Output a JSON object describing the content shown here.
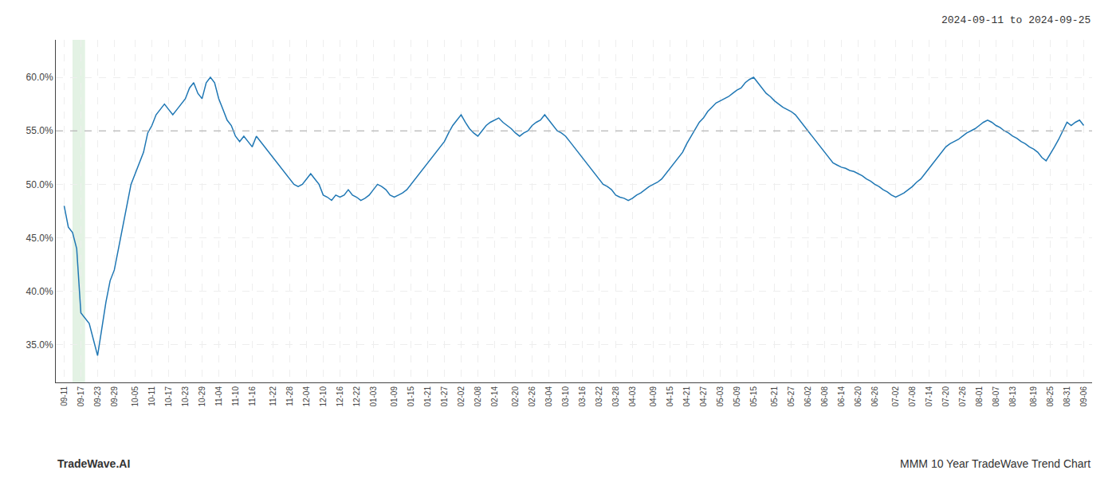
{
  "chart_data": {
    "type": "line",
    "annotations": [
      "2024-09-11 to 2024-09-25",
      "TradeWave.AI",
      "MMM 10 Year TradeWave Trend Chart"
    ],
    "color": "#1f77b4",
    "grid": true,
    "ylim": [
      0.315,
      0.635
    ],
    "yticks": [
      {
        "value": 0.35,
        "label": "35.0%"
      },
      {
        "value": 0.4,
        "label": "40.0%"
      },
      {
        "value": 0.45,
        "label": "45.0%"
      },
      {
        "value": 0.5,
        "label": "50.0%"
      },
      {
        "value": 0.55,
        "label": "55.0%"
      },
      {
        "value": 0.6,
        "label": "60.0%"
      }
    ],
    "highlight": {
      "x": [
        2,
        5
      ],
      "color": "#c8e6c9"
    },
    "reference_line": {
      "y": 0.55
    },
    "categories": [
      "09-11",
      null,
      null,
      null,
      "09-17",
      null,
      null,
      null,
      "09-23",
      null,
      null,
      null,
      "09-29",
      null,
      null,
      null,
      null,
      "10-05",
      null,
      null,
      null,
      "10-11",
      null,
      null,
      null,
      "10-17",
      null,
      null,
      null,
      "10-23",
      null,
      null,
      null,
      "10-29",
      null,
      null,
      null,
      "11-04",
      null,
      null,
      null,
      "11-10",
      null,
      null,
      null,
      "11-16",
      null,
      null,
      null,
      null,
      "11-22",
      null,
      null,
      null,
      "11-28",
      null,
      null,
      null,
      "12-04",
      null,
      null,
      null,
      "12-10",
      null,
      null,
      null,
      "12-16",
      null,
      null,
      null,
      "12-22",
      null,
      null,
      null,
      "01-03",
      null,
      null,
      null,
      null,
      "01-09",
      null,
      null,
      null,
      "01-15",
      null,
      null,
      null,
      "01-21",
      null,
      null,
      null,
      "01-27",
      null,
      null,
      null,
      "02-02",
      null,
      null,
      null,
      "02-08",
      null,
      null,
      null,
      "02-14",
      null,
      null,
      null,
      null,
      "02-20",
      null,
      null,
      null,
      "02-26",
      null,
      null,
      null,
      "03-04",
      null,
      null,
      null,
      "03-10",
      null,
      null,
      null,
      "03-16",
      null,
      null,
      null,
      "03-22",
      null,
      null,
      null,
      "03-28",
      null,
      null,
      null,
      "04-03",
      null,
      null,
      null,
      null,
      "04-09",
      null,
      null,
      null,
      "04-15",
      null,
      null,
      null,
      "04-21",
      null,
      null,
      null,
      "04-27",
      null,
      null,
      null,
      "05-03",
      null,
      null,
      null,
      "05-09",
      null,
      null,
      null,
      "05-15",
      null,
      null,
      null,
      null,
      "05-21",
      null,
      null,
      null,
      "05-27",
      null,
      null,
      null,
      "06-02",
      null,
      null,
      null,
      "06-08",
      null,
      null,
      null,
      "06-14",
      null,
      null,
      null,
      "06-20",
      null,
      null,
      null,
      "06-26",
      null,
      null,
      null,
      null,
      "07-02",
      null,
      null,
      null,
      "07-08",
      null,
      null,
      null,
      "07-14",
      null,
      null,
      null,
      "07-20",
      null,
      null,
      null,
      "07-26",
      null,
      null,
      null,
      "08-01",
      null,
      null,
      null,
      "08-07",
      null,
      null,
      null,
      "08-13",
      null,
      null,
      null,
      null,
      "08-19",
      null,
      null,
      null,
      "08-25",
      null,
      null,
      null,
      "08-31",
      null,
      null,
      null,
      "09-06"
    ],
    "values": [
      0.48,
      0.46,
      0.455,
      0.44,
      0.38,
      0.375,
      0.37,
      0.355,
      0.34,
      0.365,
      0.39,
      0.41,
      0.42,
      0.44,
      0.46,
      0.48,
      0.5,
      0.51,
      0.52,
      0.53,
      0.548,
      0.555,
      0.565,
      0.57,
      0.575,
      0.57,
      0.565,
      0.57,
      0.575,
      0.58,
      0.59,
      0.595,
      0.585,
      0.58,
      0.595,
      0.6,
      0.595,
      0.58,
      0.57,
      0.56,
      0.555,
      0.545,
      0.54,
      0.545,
      0.54,
      0.535,
      0.545,
      0.54,
      0.535,
      0.53,
      0.525,
      0.52,
      0.515,
      0.51,
      0.505,
      0.5,
      0.498,
      0.5,
      0.505,
      0.51,
      0.505,
      0.5,
      0.49,
      0.488,
      0.485,
      0.49,
      0.488,
      0.49,
      0.495,
      0.49,
      0.488,
      0.485,
      0.487,
      0.49,
      0.495,
      0.5,
      0.498,
      0.495,
      0.49,
      0.488,
      0.49,
      0.492,
      0.495,
      0.5,
      0.505,
      0.51,
      0.515,
      0.52,
      0.525,
      0.53,
      0.535,
      0.54,
      0.548,
      0.555,
      0.56,
      0.565,
      0.558,
      0.552,
      0.548,
      0.545,
      0.55,
      0.555,
      0.558,
      0.56,
      0.562,
      0.558,
      0.555,
      0.552,
      0.548,
      0.545,
      0.548,
      0.55,
      0.555,
      0.558,
      0.56,
      0.565,
      0.56,
      0.555,
      0.55,
      0.548,
      0.545,
      0.54,
      0.535,
      0.53,
      0.525,
      0.52,
      0.515,
      0.51,
      0.505,
      0.5,
      0.498,
      0.495,
      0.49,
      0.488,
      0.487,
      0.485,
      0.487,
      0.49,
      0.492,
      0.495,
      0.498,
      0.5,
      0.502,
      0.505,
      0.51,
      0.515,
      0.52,
      0.525,
      0.53,
      0.538,
      0.545,
      0.552,
      0.558,
      0.562,
      0.568,
      0.572,
      0.576,
      0.578,
      0.58,
      0.582,
      0.585,
      0.588,
      0.59,
      0.595,
      0.598,
      0.6,
      0.595,
      0.59,
      0.585,
      0.582,
      0.578,
      0.575,
      0.572,
      0.57,
      0.568,
      0.565,
      0.56,
      0.555,
      0.55,
      0.545,
      0.54,
      0.535,
      0.53,
      0.525,
      0.52,
      0.518,
      0.516,
      0.515,
      0.513,
      0.512,
      0.51,
      0.508,
      0.505,
      0.503,
      0.5,
      0.498,
      0.495,
      0.493,
      0.49,
      0.488,
      0.49,
      0.492,
      0.495,
      0.498,
      0.502,
      0.505,
      0.51,
      0.515,
      0.52,
      0.525,
      0.53,
      0.535,
      0.538,
      0.54,
      0.542,
      0.545,
      0.548,
      0.55,
      0.552,
      0.555,
      0.558,
      0.56,
      0.558,
      0.555,
      0.553,
      0.55,
      0.548,
      0.545,
      0.543,
      0.54,
      0.538,
      0.535,
      0.533,
      0.53,
      0.525,
      0.522,
      0.528,
      0.535,
      0.542,
      0.55,
      0.558,
      0.555,
      0.558,
      0.56,
      0.555
    ]
  }
}
